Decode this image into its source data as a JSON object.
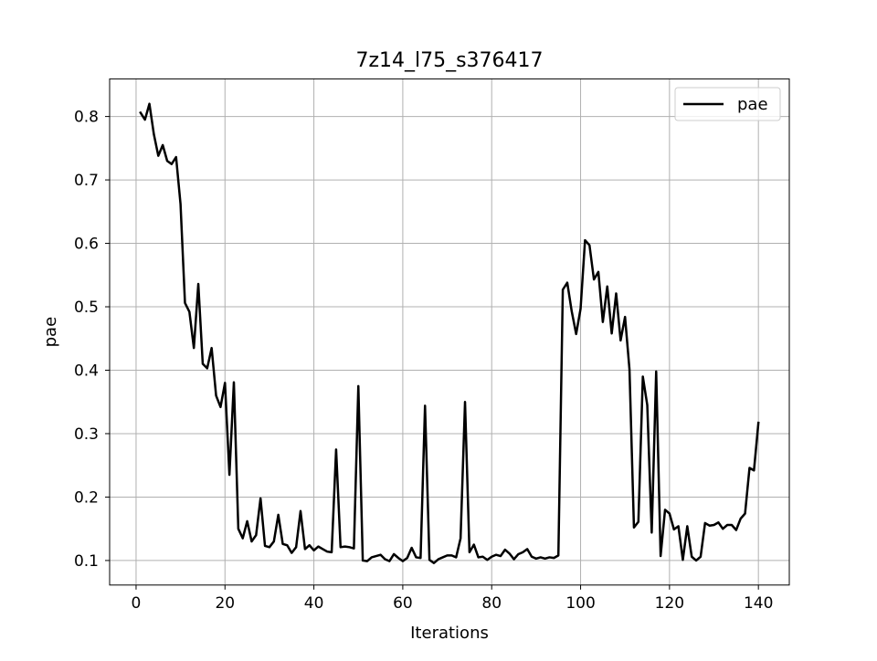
{
  "chart_data": {
    "type": "line",
    "title": "7z14_l75_s376417",
    "xlabel": "Iterations",
    "ylabel": "pae",
    "xlim": [
      -5.95,
      146.95
    ],
    "ylim": [
      0.0613,
      0.8593
    ],
    "xticks": [
      0,
      20,
      40,
      60,
      80,
      100,
      120,
      140
    ],
    "yticks": [
      0.1,
      0.2,
      0.3,
      0.4,
      0.5,
      0.6,
      0.7,
      0.8
    ],
    "grid": true,
    "legend_position": "top-right",
    "series": [
      {
        "name": "pae",
        "color": "#000000",
        "x": [
          1,
          2,
          3,
          4,
          5,
          6,
          7,
          8,
          9,
          10,
          11,
          12,
          13,
          14,
          15,
          16,
          17,
          18,
          19,
          20,
          21,
          22,
          23,
          24,
          25,
          26,
          27,
          28,
          29,
          30,
          31,
          32,
          33,
          34,
          35,
          36,
          37,
          38,
          39,
          40,
          41,
          42,
          43,
          44,
          45,
          46,
          47,
          48,
          49,
          50,
          51,
          52,
          53,
          54,
          55,
          56,
          57,
          58,
          59,
          60,
          61,
          62,
          63,
          64,
          65,
          66,
          67,
          68,
          69,
          70,
          71,
          72,
          73,
          74,
          75,
          76,
          77,
          78,
          79,
          80,
          81,
          82,
          83,
          84,
          85,
          86,
          87,
          88,
          89,
          90,
          91,
          92,
          93,
          94,
          95,
          96,
          97,
          98,
          99,
          100,
          101,
          102,
          103,
          104,
          105,
          106,
          107,
          108,
          109,
          110,
          111,
          112,
          113,
          114,
          115,
          116,
          117,
          118,
          119,
          120,
          121,
          122,
          123,
          124,
          125,
          126,
          127,
          128,
          129,
          130,
          131,
          132,
          133,
          134,
          135,
          136,
          137,
          138,
          139,
          140
        ],
        "y": [
          0.806,
          0.795,
          0.82,
          0.772,
          0.738,
          0.755,
          0.73,
          0.725,
          0.736,
          0.662,
          0.506,
          0.492,
          0.435,
          0.536,
          0.41,
          0.403,
          0.435,
          0.36,
          0.342,
          0.38,
          0.235,
          0.381,
          0.15,
          0.135,
          0.162,
          0.13,
          0.14,
          0.198,
          0.123,
          0.121,
          0.13,
          0.172,
          0.126,
          0.124,
          0.112,
          0.121,
          0.178,
          0.118,
          0.124,
          0.116,
          0.122,
          0.118,
          0.114,
          0.113,
          0.275,
          0.121,
          0.122,
          0.121,
          0.119,
          0.375,
          0.1,
          0.099,
          0.105,
          0.107,
          0.109,
          0.102,
          0.099,
          0.11,
          0.104,
          0.099,
          0.104,
          0.12,
          0.105,
          0.104,
          0.344,
          0.101,
          0.096,
          0.102,
          0.105,
          0.108,
          0.108,
          0.105,
          0.135,
          0.35,
          0.113,
          0.125,
          0.105,
          0.106,
          0.101,
          0.106,
          0.109,
          0.107,
          0.117,
          0.111,
          0.102,
          0.11,
          0.113,
          0.118,
          0.106,
          0.103,
          0.105,
          0.103,
          0.105,
          0.104,
          0.108,
          0.527,
          0.538,
          0.493,
          0.457,
          0.497,
          0.605,
          0.597,
          0.543,
          0.555,
          0.476,
          0.532,
          0.458,
          0.521,
          0.447,
          0.484,
          0.401,
          0.152,
          0.161,
          0.39,
          0.345,
          0.144,
          0.398,
          0.107,
          0.18,
          0.174,
          0.149,
          0.154,
          0.101,
          0.154,
          0.106,
          0.1,
          0.106,
          0.159,
          0.155,
          0.156,
          0.16,
          0.15,
          0.156,
          0.156,
          0.148,
          0.166,
          0.174,
          0.246,
          0.242,
          0.317
        ]
      }
    ]
  }
}
